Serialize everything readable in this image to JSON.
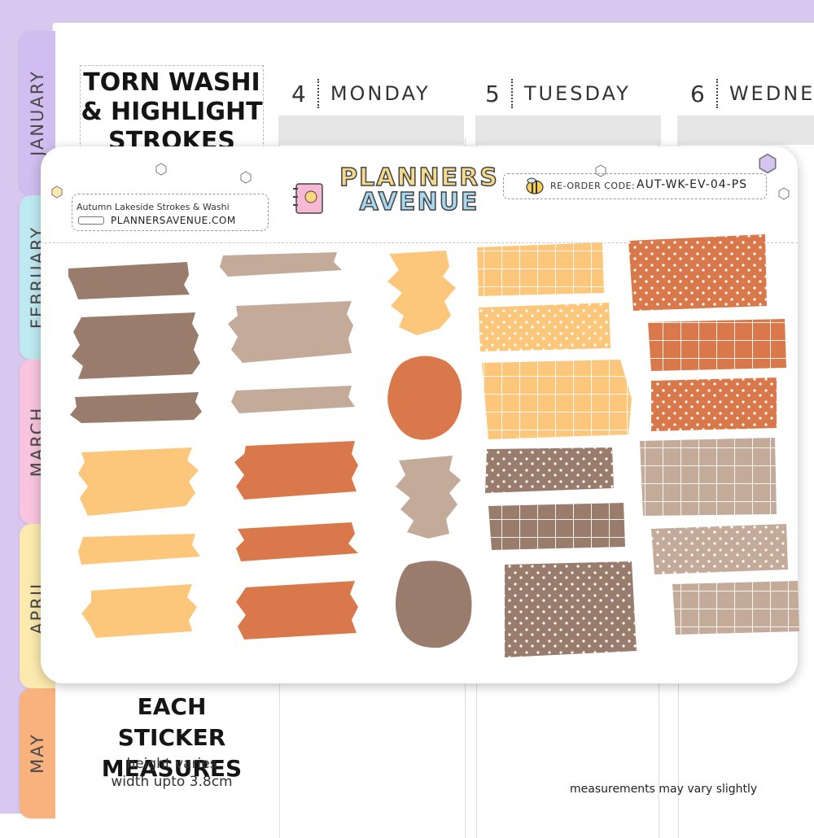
{
  "tabs": [
    {
      "label": "JANUARY",
      "color": "#d1bdf0"
    },
    {
      "label": "FEBRUARY",
      "color": "#bfe9f1"
    },
    {
      "label": "MARCH",
      "color": "#f9c4dd"
    },
    {
      "label": "APRIL",
      "color": "#fbe9ad"
    },
    {
      "label": "MAY",
      "color": "#f9b27e"
    }
  ],
  "days": [
    {
      "num": "4",
      "name": "MONDAY"
    },
    {
      "num": "5",
      "name": "TUESDAY"
    },
    {
      "num": "6",
      "name": "WEDNE"
    }
  ],
  "title": {
    "line1": "TORN WASHI",
    "line2": "& HIGHLIGHT",
    "line3": "STROKES"
  },
  "measure": {
    "line1": "EACH STICKER",
    "line2": "MEASURES",
    "sub1": "height varies",
    "sub2": "width upto 3.8cm"
  },
  "footnote": "measurements may vary slightly",
  "sheet": {
    "name": "Autumn Lakeside Strokes & Washi",
    "url": "PLANNERSAVENUE.COM",
    "logo_line1": "PLANNERS",
    "logo_line2": "AVENUE",
    "code_label": "RE-ORDER CODE:",
    "code_value": "AUT-WK-EV-04-PS"
  },
  "palette": {
    "brown": "#9a7c6c",
    "taupe": "#c3aa99",
    "orange": "#d9784a",
    "peach": "#fcc77a"
  }
}
